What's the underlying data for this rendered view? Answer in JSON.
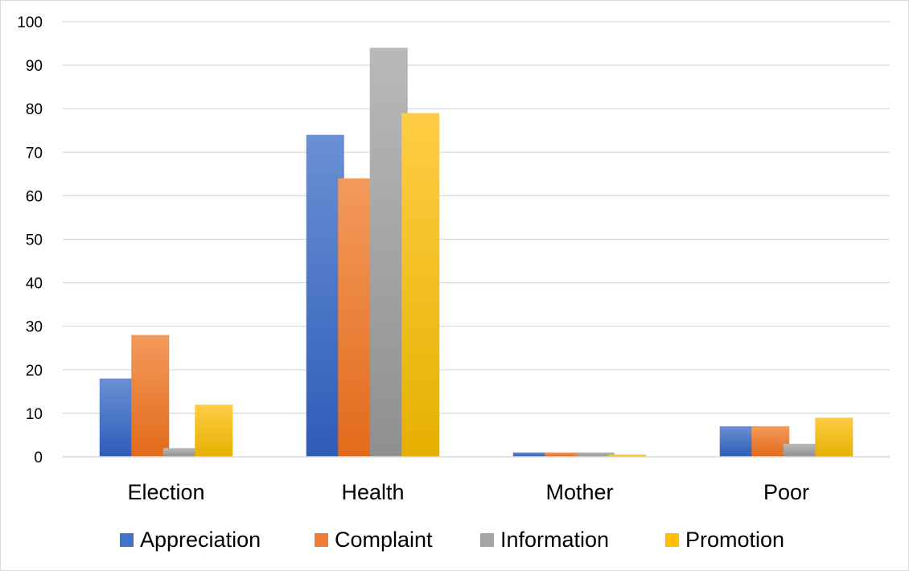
{
  "chart_data": {
    "type": "bar",
    "title": "",
    "xlabel": "",
    "ylabel": "",
    "ylim": [
      0,
      100
    ],
    "yticks": [
      "0",
      "10",
      "20",
      "30",
      "40",
      "50",
      "60",
      "70",
      "80",
      "90",
      "100"
    ],
    "grid": true,
    "legend_position": "bottom",
    "categories": [
      "Election",
      "Health",
      "Mother",
      "Poor"
    ],
    "series": [
      {
        "name": "Appreciation",
        "values": [
          18,
          74,
          1,
          7
        ],
        "color": "#4472c4",
        "color_light": "#6a8fd4",
        "color_dark": "#2e5cb8"
      },
      {
        "name": "Complaint",
        "values": [
          28,
          64,
          1,
          7
        ],
        "color": "#ed7d31",
        "color_light": "#f39a5c",
        "color_dark": "#e26a1a"
      },
      {
        "name": "Information",
        "values": [
          2,
          94,
          1,
          3
        ],
        "color": "#a5a5a5",
        "color_light": "#b9b9b9",
        "color_dark": "#8f8f8f"
      },
      {
        "name": "Promotion",
        "values": [
          12,
          79,
          0.5,
          9
        ],
        "color": "#ffc000",
        "color_light": "#ffcd45",
        "color_dark": "#e6b000"
      }
    ]
  }
}
